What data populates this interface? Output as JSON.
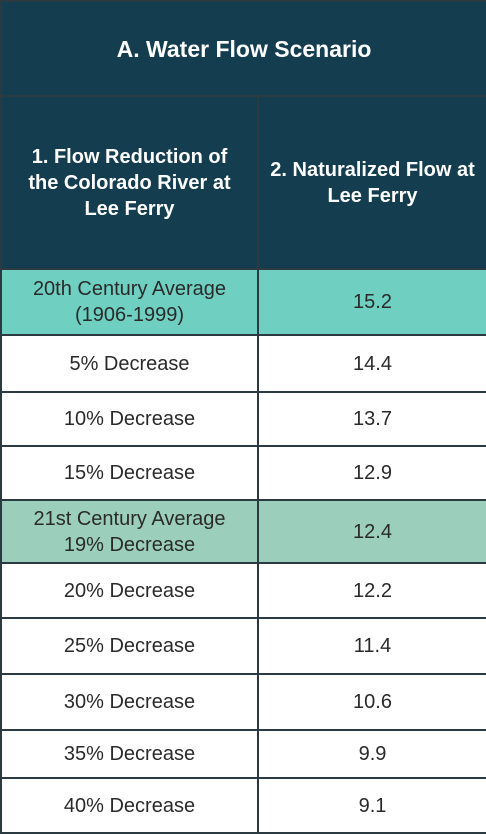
{
  "title": "A. Water Flow Scenario",
  "headers": {
    "col1": "1. Flow Reduction of the Colorado River at Lee Ferry",
    "col2": "2. Naturalized Flow at Lee Ferry"
  },
  "rows": [
    {
      "label": "20th Century Average (1906-1999)",
      "value": "15.2"
    },
    {
      "label": "5% Decrease",
      "value": "14.4"
    },
    {
      "label": "10% Decrease",
      "value": "13.7"
    },
    {
      "label": "15% Decrease",
      "value": "12.9"
    },
    {
      "label": "21st Century Average 19% Decrease",
      "value": "12.4"
    },
    {
      "label": "20% Decrease",
      "value": "12.2"
    },
    {
      "label": "25% Decrease",
      "value": "11.4"
    },
    {
      "label": "30% Decrease",
      "value": "10.6"
    },
    {
      "label": "35% Decrease",
      "value": "9.9"
    },
    {
      "label": "40% Decrease",
      "value": "9.1"
    }
  ],
  "colors": {
    "header_bg": "#143d4f",
    "highlight_20th": "#6fcfc1",
    "highlight_21st": "#9ccfbb",
    "border": "#2b3a40"
  }
}
